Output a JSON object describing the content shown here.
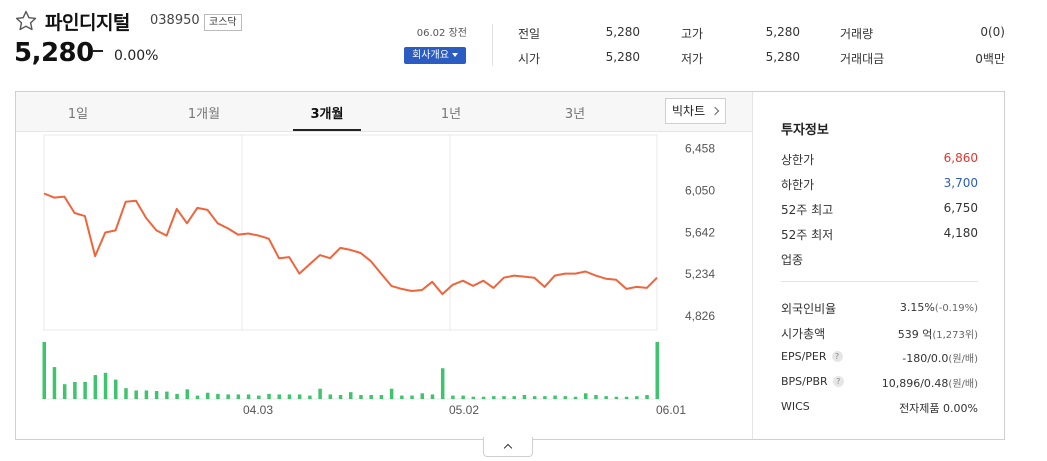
{
  "stock": {
    "name": "파인디지털",
    "code": "038950",
    "market": "코스닥",
    "price": "5,280",
    "change_rate": "0.00%",
    "date_label": "06.02 장전",
    "info_button": "회사개요"
  },
  "quote": {
    "prev_label": "전일",
    "prev_value": "5,280",
    "open_label": "시가",
    "open_value": "5,280",
    "high_label": "고가",
    "high_value": "5,280",
    "low_label": "저가",
    "low_value": "5,280",
    "volume_label": "거래량",
    "volume_value": "0(0)",
    "amount_label": "거래대금",
    "amount_value": "0백만"
  },
  "tabs": [
    "1일",
    "1개월",
    "3개월",
    "1년",
    "3년"
  ],
  "active_tab": "3개월",
  "bigchart_label": "빅차트",
  "chart_data": {
    "type": "line",
    "y_ticks": [
      "6,458",
      "6,050",
      "5,642",
      "5,234",
      "4,826"
    ],
    "x_ticks": [
      "04.03",
      "05.02",
      "06.01"
    ],
    "ylim": [
      4690,
      6590
    ],
    "colors": {
      "line": "#f0643c",
      "volume": "#3ec46d"
    },
    "price": [
      6020,
      5980,
      5990,
      5830,
      5800,
      5410,
      5640,
      5660,
      5940,
      5950,
      5780,
      5660,
      5610,
      5870,
      5730,
      5880,
      5860,
      5730,
      5680,
      5620,
      5630,
      5610,
      5580,
      5390,
      5400,
      5240,
      5330,
      5420,
      5390,
      5490,
      5470,
      5440,
      5360,
      5240,
      5120,
      5090,
      5070,
      5080,
      5160,
      5040,
      5130,
      5170,
      5120,
      5170,
      5100,
      5200,
      5220,
      5210,
      5200,
      5110,
      5220,
      5240,
      5240,
      5260,
      5220,
      5190,
      5180,
      5090,
      5110,
      5100,
      5200
    ],
    "volume": [
      100,
      56,
      26,
      30,
      30,
      42,
      46,
      34,
      19,
      15,
      15,
      14,
      13,
      9,
      17,
      6,
      11,
      9,
      8,
      8,
      8,
      6,
      9,
      8,
      8,
      8,
      6,
      18,
      8,
      7,
      12,
      7,
      7,
      7,
      18,
      6,
      6,
      10,
      8,
      54,
      6,
      6,
      4,
      4,
      5,
      5,
      5,
      7,
      5,
      5,
      6,
      5,
      4,
      10,
      7,
      5,
      4,
      4,
      5,
      7,
      100
    ]
  },
  "invest": {
    "title": "투자정보",
    "upper_label": "상한가",
    "upper_value": "6,860",
    "lower_label": "하한가",
    "lower_value": "3,700",
    "high52_label": "52주 최고",
    "high52_value": "6,750",
    "low52_label": "52주 최저",
    "low52_value": "4,180",
    "sector_label": "업종",
    "foreign_label": "외국인비율",
    "foreign_value": "3.15%",
    "foreign_change": "(-0.19%)",
    "cap_label": "시가총액",
    "cap_value": "539 억",
    "cap_sub": "(1,273위)",
    "eps_label": "EPS/PER",
    "eps_value": "-180/0.0",
    "eps_unit": "(원/배)",
    "bps_label": "BPS/PBR",
    "bps_value": "10,896/0.48",
    "bps_unit": "(원/배)",
    "wics_label": "WICS",
    "wics_value": "전자제품",
    "wics_rate": "0.00%",
    "help_icon": "?"
  }
}
